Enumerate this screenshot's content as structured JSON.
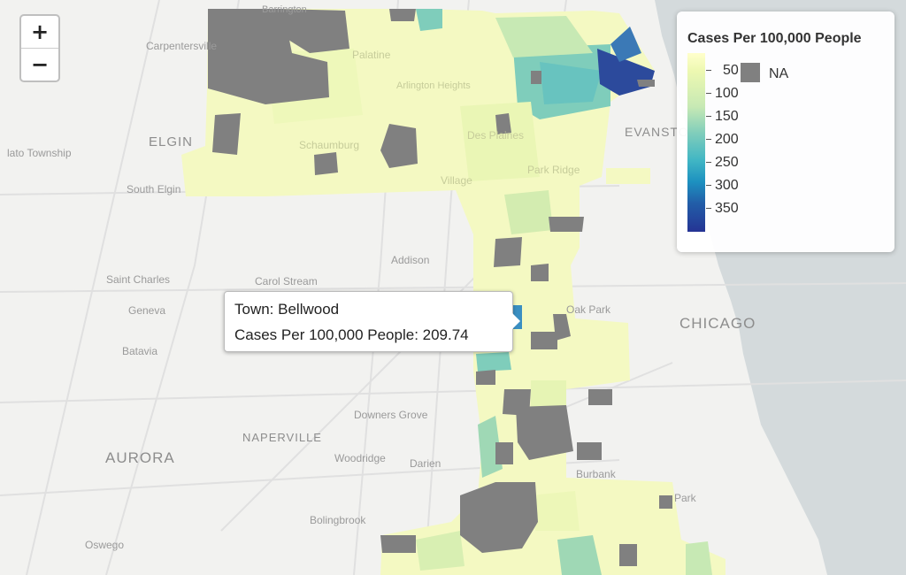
{
  "controls": {
    "zoom_in": "+",
    "zoom_out": "−"
  },
  "legend": {
    "title": "Cases Per 100,000 People",
    "ticks": [
      "50",
      "100",
      "150",
      "200",
      "250",
      "300",
      "350"
    ],
    "na_label": "NA",
    "colors": {
      "low": "#ffffcc",
      "mid": "#7fcdbb",
      "high": "#253494",
      "na": "#808080"
    }
  },
  "tooltip": {
    "town_line": "Town: Bellwood",
    "cases_line": "Cases Per 100,000 People: 209.74"
  },
  "place_labels": [
    {
      "text": "Carpentersville"
    },
    {
      "text": "ELGIN"
    },
    {
      "text": "lato Township"
    },
    {
      "text": "South Elgin"
    },
    {
      "text": "Saint Charles"
    },
    {
      "text": "Geneva"
    },
    {
      "text": "Batavia"
    },
    {
      "text": "Carol Stream"
    },
    {
      "text": "Addison"
    },
    {
      "text": "Oak Park"
    },
    {
      "text": "CHICAGO"
    },
    {
      "text": "EVANSTON"
    },
    {
      "text": "Downers Grove"
    },
    {
      "text": "NAPERVILLE"
    },
    {
      "text": "Woodridge"
    },
    {
      "text": "Darien"
    },
    {
      "text": "AURORA"
    },
    {
      "text": "Burbank"
    },
    {
      "text": "Bolingbrook"
    },
    {
      "text": "Oswego"
    },
    {
      "text": "Park"
    },
    {
      "text": "Schaumburg"
    },
    {
      "text": "Des Plaines"
    },
    {
      "text": "Palatine"
    },
    {
      "text": "Arlington Heights"
    },
    {
      "text": "Park Ridge"
    },
    {
      "text": "Village"
    },
    {
      "text": "Barrington"
    }
  ]
}
